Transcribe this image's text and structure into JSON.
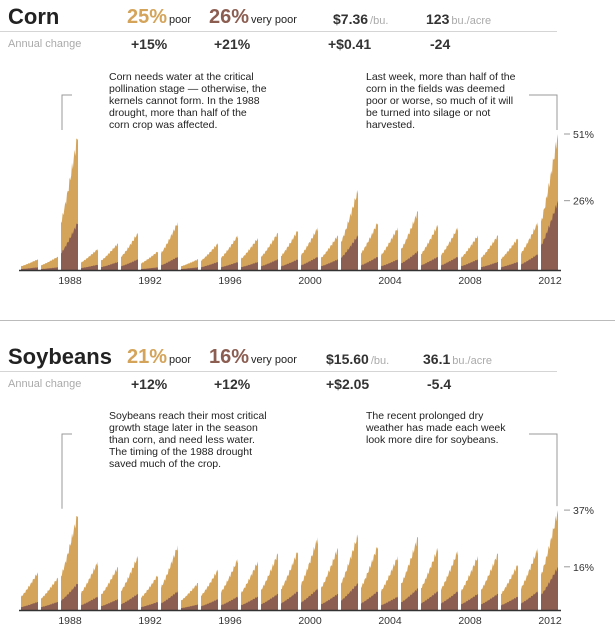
{
  "colors": {
    "poor": "#d4a45a",
    "very_poor": "#8c5e52",
    "baseline": "#333333",
    "leader": "#999999"
  },
  "common": {
    "annual_change_label": "Annual change"
  },
  "corn": {
    "name": "Corn",
    "poor_pct": "25%",
    "poor_label": "poor",
    "very_poor_pct": "26%",
    "very_poor_label": "very poor",
    "price": "$7.36",
    "price_unit": "/bu.",
    "yield": "123",
    "yield_unit": "bu./acre",
    "change_poor": "+15%",
    "change_very_poor": "+21%",
    "change_price": "+$0.41",
    "change_yield": "-24",
    "note_left": "Corn needs water at the critical pollination stage — otherwise, the kernels cannot form. In the 1988 drought, more than half of the corn crop was affected.",
    "note_right": "Last week, more than half of the corn in the fields was deemed poor or worse, so much of it will be turned into silage or not harvested."
  },
  "soybeans": {
    "name": "Soybeans",
    "poor_pct": "21%",
    "poor_label": "poor",
    "very_poor_pct": "16%",
    "very_poor_label": "very poor",
    "price": "$15.60",
    "price_unit": "/bu.",
    "yield": "36.1",
    "yield_unit": "bu./acre",
    "change_poor": "+12%",
    "change_very_poor": "+12%",
    "change_price": "+$2.05",
    "change_yield": "-5.4",
    "note_left": "Soybeans reach their most critical growth stage later in the season than corn, and need less water. The timing of the 1988 drought saved much of the crop.",
    "note_right": "The recent prolonged dry weather has made each week look more dire for soybeans."
  },
  "chart_data": [
    {
      "type": "area",
      "crop": "Corn",
      "x_label_years": [
        "1988",
        "1992",
        "1996",
        "2000",
        "2004",
        "2008",
        "2012"
      ],
      "y_ticks": [
        "51%",
        "26%"
      ],
      "y_tick_values": [
        51,
        26
      ],
      "ylim": [
        0,
        54
      ],
      "years": [
        1986,
        1987,
        1988,
        1989,
        1990,
        1991,
        1992,
        1993,
        1994,
        1995,
        1996,
        1997,
        1998,
        1999,
        2000,
        2001,
        2002,
        2003,
        2004,
        2005,
        2006,
        2007,
        2008,
        2009,
        2010,
        2011,
        2012
      ],
      "series": [
        {
          "name": "poor",
          "peak": [
            4,
            5,
            51,
            8,
            10,
            14,
            7,
            18,
            4,
            10,
            13,
            12,
            14,
            15,
            16,
            13,
            30,
            18,
            16,
            22,
            17,
            16,
            13,
            13,
            12,
            18,
            51
          ]
        },
        {
          "name": "very poor",
          "peak": [
            1,
            1,
            18,
            2,
            3,
            4,
            1,
            5,
            1,
            3,
            3,
            3,
            4,
            4,
            5,
            4,
            13,
            5,
            4,
            7,
            5,
            5,
            4,
            3,
            3,
            6,
            26
          ]
        }
      ]
    },
    {
      "type": "area",
      "crop": "Soybeans",
      "x_label_years": [
        "1988",
        "1992",
        "1996",
        "2000",
        "2004",
        "2008",
        "2012"
      ],
      "y_ticks": [
        "37%",
        "16%"
      ],
      "y_tick_values": [
        37,
        16
      ],
      "ylim": [
        0,
        40
      ],
      "years": [
        1986,
        1987,
        1988,
        1989,
        1990,
        1991,
        1992,
        1993,
        1994,
        1995,
        1996,
        1997,
        1998,
        1999,
        2000,
        2001,
        2002,
        2003,
        2004,
        2005,
        2006,
        2007,
        2008,
        2009,
        2010,
        2011,
        2012
      ],
      "series": [
        {
          "name": "poor",
          "peak": [
            14,
            12,
            36,
            18,
            16,
            20,
            13,
            24,
            10,
            15,
            19,
            18,
            21,
            22,
            27,
            23,
            28,
            24,
            20,
            27,
            23,
            22,
            20,
            21,
            17,
            23,
            37
          ]
        },
        {
          "name": "very poor",
          "peak": [
            3,
            3,
            10,
            5,
            4,
            6,
            3,
            7,
            2,
            4,
            5,
            5,
            6,
            7,
            8,
            6,
            10,
            7,
            5,
            8,
            7,
            7,
            6,
            6,
            5,
            7,
            16
          ]
        }
      ]
    }
  ]
}
